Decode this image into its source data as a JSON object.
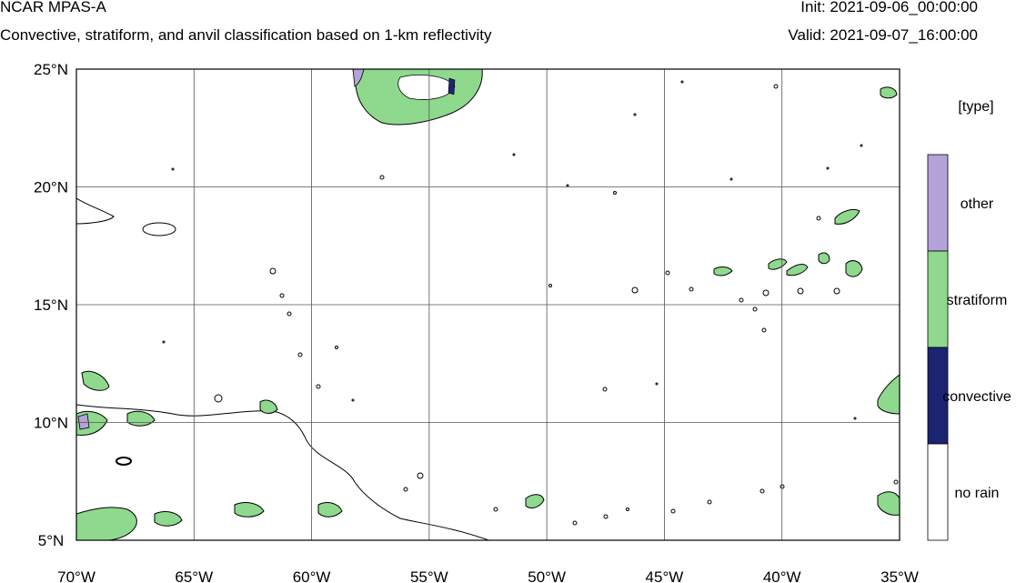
{
  "header": {
    "model": "NCAR MPAS-A",
    "subtitle": "Convective, stratiform, and anvil classification based on 1-km reflectivity",
    "init": "Init: 2021-09-06_00:00:00",
    "valid": "Valid: 2021-09-07_16:00:00"
  },
  "map": {
    "lat_labels": [
      "25°N",
      "20°N",
      "15°N",
      "10°N",
      "5°N"
    ],
    "lon_labels": [
      "70°W",
      "65°W",
      "60°W",
      "55°W",
      "50°W",
      "45°W",
      "40°W",
      "35°W"
    ],
    "lat_range": [
      5,
      25
    ],
    "lon_range": [
      -70,
      -35
    ]
  },
  "legend": {
    "title": "[type]",
    "items": [
      {
        "label": "other",
        "color": "#b3a3d9"
      },
      {
        "label": "stratiform",
        "color": "#8ed98e"
      },
      {
        "label": "convective",
        "color": "#1b2470"
      },
      {
        "label": "no rain",
        "color": "#ffffff"
      }
    ]
  },
  "colors": {
    "other": "#b3a3d9",
    "stratiform": "#8ed98e",
    "convective": "#1b2470",
    "outline": "#000000"
  }
}
